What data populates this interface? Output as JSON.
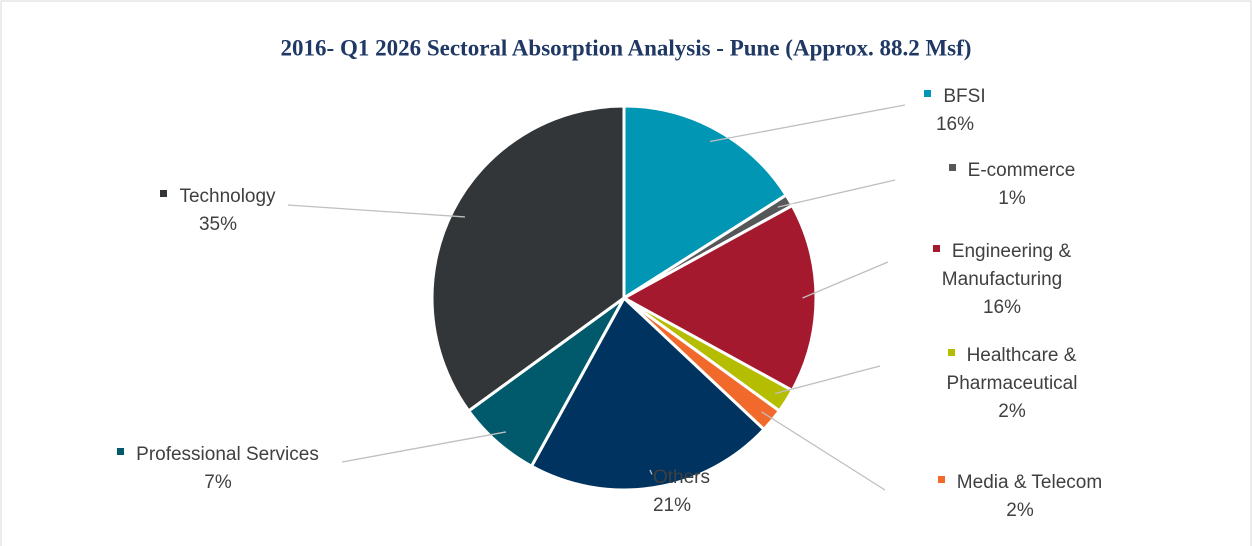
{
  "chart_data": {
    "type": "pie",
    "title": "2016- Q1 2026 Sectoral Absorption Analysis - Pune (Approx. 88.2 Msf)",
    "categories": [
      "BFSI",
      "E-commerce",
      "Engineering & Manufacturing",
      "Healthcare & Pharmaceutical",
      "Media & Telecom",
      "Others",
      "Professional Services",
      "Technology"
    ],
    "values": [
      16,
      1,
      16,
      2,
      2,
      21,
      7,
      35
    ],
    "value_labels": [
      "16%",
      "1%",
      "16%",
      "2%",
      "2%",
      "21%",
      "7%",
      "35%"
    ],
    "colors": [
      "#0096b4",
      "#555759",
      "#a5192e",
      "#b5bd00",
      "#f26a2b",
      "#003360",
      "#005a6b",
      "#333638"
    ]
  }
}
